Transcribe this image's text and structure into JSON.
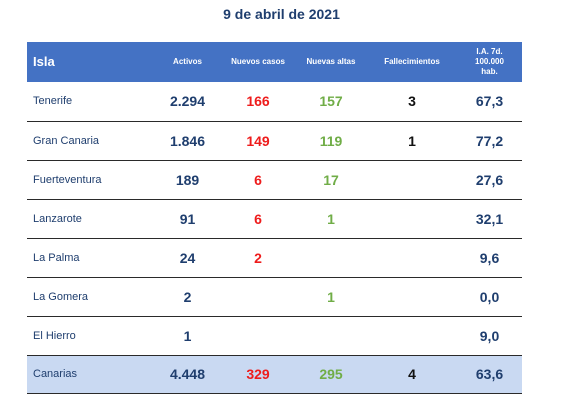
{
  "title": "9 de abril de 2021",
  "headers": {
    "isla": "Isla",
    "activos": "Activos",
    "nuevos": "Nuevos casos",
    "altas": "Nuevas altas",
    "fallec": "Fallecimientos",
    "ia_1": "I.A. 7d.",
    "ia_2": "100.000",
    "ia_3": "hab."
  },
  "rows": [
    {
      "name": "Tenerife",
      "activos": "2.294",
      "nuevos": "166",
      "altas": "157",
      "fallec": "3",
      "ia": "67,3"
    },
    {
      "name": "Gran Canaria",
      "activos": "1.846",
      "nuevos": "149",
      "altas": "119",
      "fallec": "1",
      "ia": "77,2"
    },
    {
      "name": "Fuerteventura",
      "activos": "189",
      "nuevos": "6",
      "altas": "17",
      "fallec": "",
      "ia": "27,6"
    },
    {
      "name": "Lanzarote",
      "activos": "91",
      "nuevos": "6",
      "altas": "1",
      "fallec": "",
      "ia": "32,1"
    },
    {
      "name": "La Palma",
      "activos": "24",
      "nuevos": "2",
      "altas": "",
      "fallec": "",
      "ia": "9,6"
    },
    {
      "name": "La Gomera",
      "activos": "2",
      "nuevos": "",
      "altas": "1",
      "fallec": "",
      "ia": "0,0"
    },
    {
      "name": "El Hierro",
      "activos": "1",
      "nuevos": "",
      "altas": "",
      "fallec": "",
      "ia": "9,0"
    }
  ],
  "total": {
    "name": "Canarias",
    "activos": "4.448",
    "nuevos": "329",
    "altas": "295",
    "fallec": "4",
    "ia": "63,6"
  },
  "colors": {
    "header_bg": "#4472c4",
    "total_bg": "#c9d9f2",
    "navy_text": "#1f3e6e",
    "nuevos_red": "#ee1c1c",
    "altas_green": "#70ad47"
  }
}
